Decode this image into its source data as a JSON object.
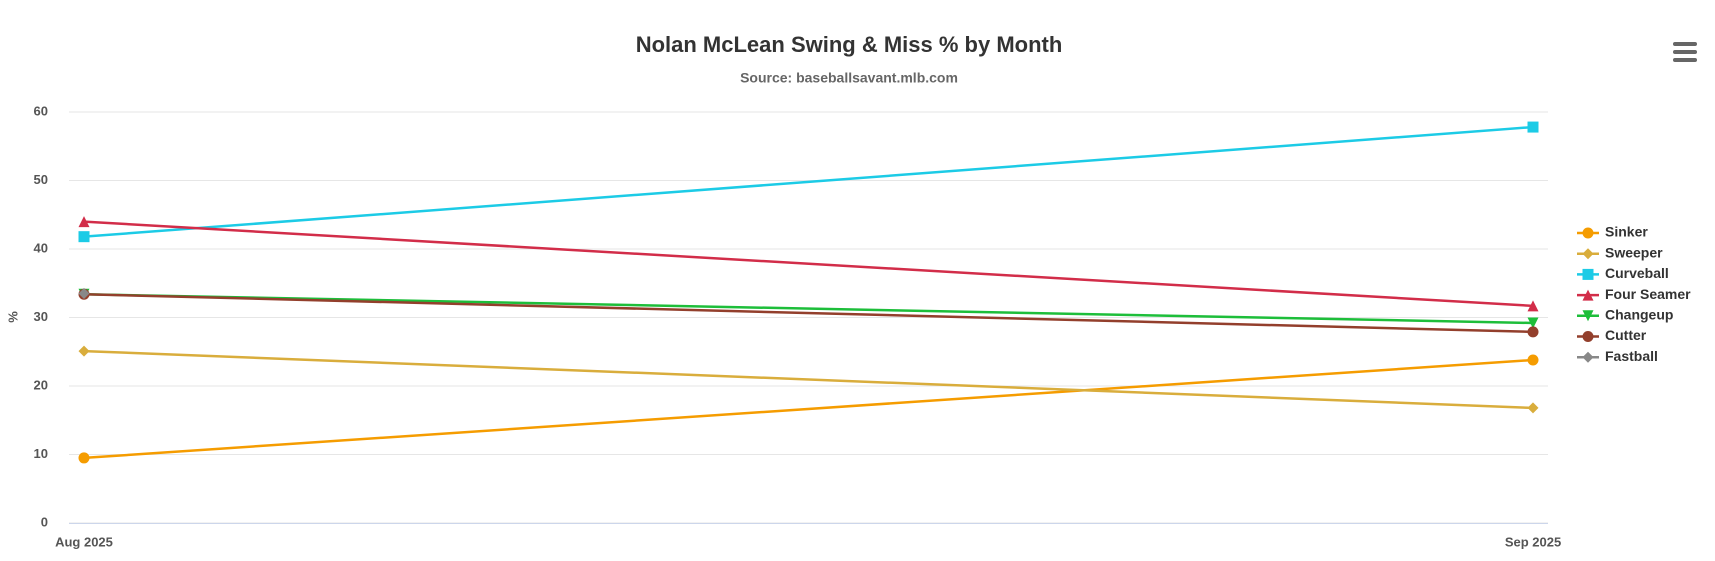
{
  "chart_data": {
    "type": "line",
    "title": "Nolan McLean Swing & Miss % by Month",
    "subtitle": "Source: baseballsavant.mlb.com",
    "y_label": "%",
    "categories": [
      "Aug 2025",
      "Sep 2025"
    ],
    "series": [
      {
        "name": "Sinker",
        "color": "#f59c00",
        "marker": "circle",
        "values": [
          9.5,
          23.8
        ]
      },
      {
        "name": "Sweeper",
        "color": "#d9ad3c",
        "marker": "diamond",
        "values": [
          25.1,
          16.8
        ]
      },
      {
        "name": "Curveball",
        "color": "#1ccbe6",
        "marker": "square",
        "values": [
          41.8,
          57.8
        ]
      },
      {
        "name": "Four Seamer",
        "color": "#d22d49",
        "marker": "triangle",
        "values": [
          44.0,
          31.7
        ]
      },
      {
        "name": "Changeup",
        "color": "#1dbe3a",
        "marker": "triangle-down",
        "values": [
          33.4,
          29.2
        ]
      },
      {
        "name": "Cutter",
        "color": "#933f2c",
        "marker": "circle",
        "values": [
          33.4,
          27.9
        ]
      },
      {
        "name": "Fastball",
        "color": "#888888",
        "marker": "diamond",
        "values": [
          33.5,
          null
        ]
      }
    ],
    "ylim": [
      0,
      60
    ],
    "yticks": [
      0,
      10,
      20,
      30,
      40,
      50,
      60
    ],
    "grid": true,
    "legend": "right"
  }
}
